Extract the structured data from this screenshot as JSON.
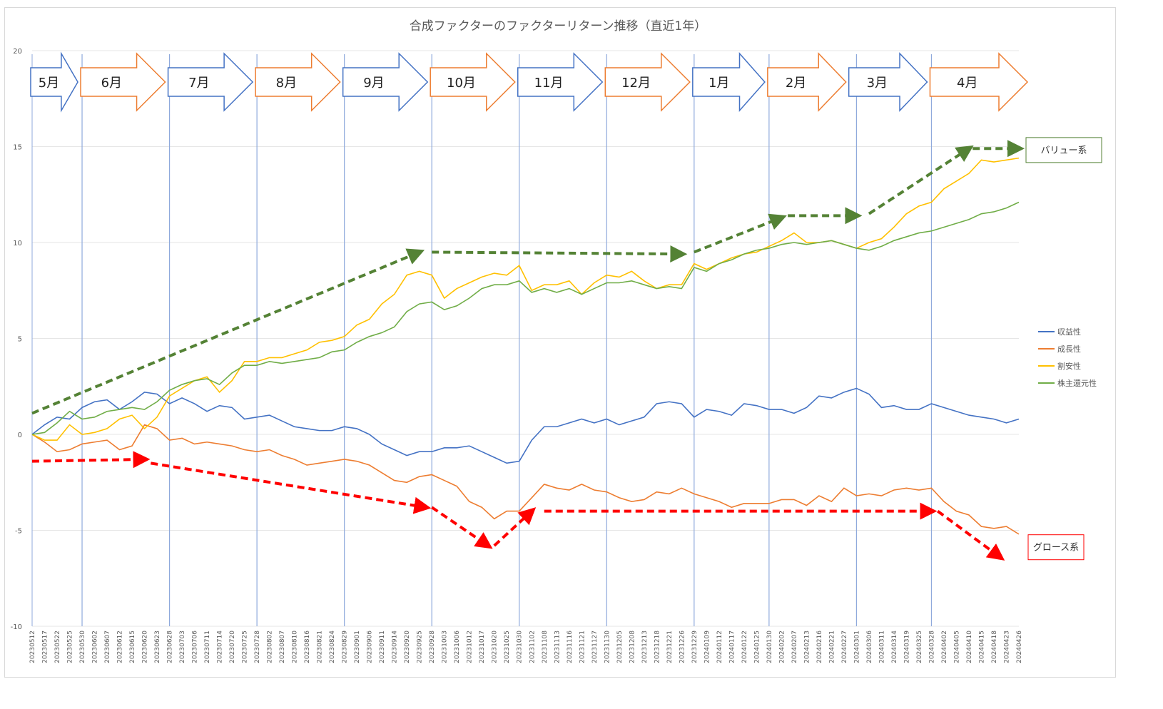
{
  "chart_data": {
    "type": "line",
    "title": "合成ファクターのファクターリターン推移（直近1年）",
    "xlabel": "",
    "ylabel": "",
    "ylim": [
      -10,
      20
    ],
    "yticks": [
      -10,
      -5,
      0,
      5,
      10,
      15,
      20
    ],
    "grid": true,
    "legend_placement": "right",
    "x": [
      "20230512",
      "20230517",
      "20230522",
      "20230525",
      "20230530",
      "20230602",
      "20230607",
      "20230612",
      "20230615",
      "20230620",
      "20230623",
      "20230628",
      "20230703",
      "20230706",
      "20230711",
      "20230714",
      "20230720",
      "20230725",
      "20230728",
      "20230802",
      "20230807",
      "20230810",
      "20230816",
      "20230821",
      "20230824",
      "20230829",
      "20230901",
      "20230906",
      "20230911",
      "20230914",
      "20230920",
      "20230925",
      "20230928",
      "20231003",
      "20231006",
      "20231012",
      "20231017",
      "20231020",
      "20231025",
      "20231030",
      "20231102",
      "20231108",
      "20231113",
      "20231116",
      "20231121",
      "20231127",
      "20231130",
      "20231205",
      "20231208",
      "20231213",
      "20231218",
      "20231221",
      "20231226",
      "20231229",
      "20240109",
      "20240112",
      "20240117",
      "20240122",
      "20240125",
      "20240130",
      "20240202",
      "20240207",
      "20240213",
      "20240216",
      "20240221",
      "20240227",
      "20240301",
      "20240306",
      "20240311",
      "20240314",
      "20240319",
      "20240325",
      "20240328",
      "20240402",
      "20240405",
      "20240410",
      "20240415",
      "20240418",
      "20240423",
      "20240426"
    ],
    "series": [
      {
        "name": "収益性",
        "color": "#4472c4",
        "values": [
          0,
          0.5,
          0.9,
          0.8,
          1.4,
          1.7,
          1.8,
          1.3,
          1.7,
          2.2,
          2.1,
          1.6,
          1.9,
          1.6,
          1.2,
          1.5,
          1.4,
          0.8,
          0.9,
          1.0,
          0.7,
          0.4,
          0.3,
          0.2,
          0.2,
          0.4,
          0.3,
          0.0,
          -0.5,
          -0.8,
          -1.1,
          -0.9,
          -0.9,
          -0.7,
          -0.7,
          -0.6,
          -0.9,
          -1.2,
          -1.5,
          -1.4,
          -0.3,
          0.4,
          0.4,
          0.6,
          0.8,
          0.6,
          0.8,
          0.5,
          0.7,
          0.9,
          1.6,
          1.7,
          1.6,
          0.9,
          1.3,
          1.2,
          1.0,
          1.6,
          1.5,
          1.3,
          1.3,
          1.1,
          1.4,
          2.0,
          1.9,
          2.2,
          2.4,
          2.1,
          1.4,
          1.5,
          1.3,
          1.3,
          1.6,
          1.4,
          1.2,
          1.0,
          0.9,
          0.8,
          0.6,
          0.8
        ]
      },
      {
        "name": "成長性",
        "color": "#ed7d31",
        "values": [
          0,
          -0.4,
          -0.9,
          -0.8,
          -0.5,
          -0.4,
          -0.3,
          -0.8,
          -0.6,
          0.5,
          0.3,
          -0.3,
          -0.2,
          -0.5,
          -0.4,
          -0.5,
          -0.6,
          -0.8,
          -0.9,
          -0.8,
          -1.1,
          -1.3,
          -1.6,
          -1.5,
          -1.4,
          -1.3,
          -1.4,
          -1.6,
          -2.0,
          -2.4,
          -2.5,
          -2.2,
          -2.1,
          -2.4,
          -2.7,
          -3.5,
          -3.8,
          -4.4,
          -4.0,
          -4.0,
          -3.3,
          -2.6,
          -2.8,
          -2.9,
          -2.6,
          -2.9,
          -3.0,
          -3.3,
          -3.5,
          -3.4,
          -3.0,
          -3.1,
          -2.8,
          -3.1,
          -3.3,
          -3.5,
          -3.8,
          -3.6,
          -3.6,
          -3.6,
          -3.4,
          -3.4,
          -3.7,
          -3.2,
          -3.5,
          -2.8,
          -3.2,
          -3.1,
          -3.2,
          -2.9,
          -2.8,
          -2.9,
          -2.8,
          -3.5,
          -4.0,
          -4.2,
          -4.8,
          -4.9,
          -4.8,
          -5.2
        ]
      },
      {
        "name": "割安性",
        "color": "#ffc000",
        "values": [
          0,
          -0.3,
          -0.3,
          0.5,
          0.0,
          0.1,
          0.3,
          0.8,
          1.0,
          0.3,
          0.9,
          2.0,
          2.4,
          2.8,
          3.0,
          2.2,
          2.8,
          3.8,
          3.8,
          4.0,
          4.0,
          4.2,
          4.4,
          4.8,
          4.9,
          5.1,
          5.7,
          6.0,
          6.8,
          7.3,
          8.3,
          8.5,
          8.3,
          7.1,
          7.6,
          7.9,
          8.2,
          8.4,
          8.3,
          8.8,
          7.5,
          7.8,
          7.8,
          8.0,
          7.3,
          7.9,
          8.3,
          8.2,
          8.5,
          8.0,
          7.6,
          7.8,
          7.8,
          8.9,
          8.6,
          8.9,
          9.2,
          9.4,
          9.5,
          9.8,
          10.1,
          10.5,
          10.0,
          10.0,
          10.1,
          9.9,
          9.7,
          10.0,
          10.2,
          10.8,
          11.5,
          11.9,
          12.1,
          12.8,
          13.2,
          13.6,
          14.3,
          14.2,
          14.3,
          14.4
        ]
      },
      {
        "name": "株主還元性",
        "color": "#70ad47",
        "values": [
          0,
          0.1,
          0.6,
          1.2,
          0.8,
          0.9,
          1.2,
          1.3,
          1.4,
          1.3,
          1.7,
          2.3,
          2.6,
          2.8,
          2.9,
          2.6,
          3.2,
          3.6,
          3.6,
          3.8,
          3.7,
          3.8,
          3.9,
          4.0,
          4.3,
          4.4,
          4.8,
          5.1,
          5.3,
          5.6,
          6.4,
          6.8,
          6.9,
          6.5,
          6.7,
          7.1,
          7.6,
          7.8,
          7.8,
          8.0,
          7.4,
          7.6,
          7.4,
          7.6,
          7.3,
          7.6,
          7.9,
          7.9,
          8.0,
          7.8,
          7.6,
          7.7,
          7.6,
          8.7,
          8.5,
          8.9,
          9.1,
          9.4,
          9.6,
          9.7,
          9.9,
          10.0,
          9.9,
          10.0,
          10.1,
          9.9,
          9.7,
          9.6,
          9.8,
          10.1,
          10.3,
          10.5,
          10.6,
          10.8,
          11.0,
          11.2,
          11.5,
          11.6,
          11.8,
          12.1
        ]
      }
    ],
    "month_dividers": [
      "20230530",
      "20230628",
      "20230728",
      "20230829",
      "20230928",
      "20231030",
      "20231130",
      "20231229",
      "20240130",
      "20240301",
      "20240328"
    ],
    "month_arrows": [
      {
        "label": "5月",
        "from": 0,
        "to": 4,
        "color": "#4472c4"
      },
      {
        "label": "6月",
        "from": 4,
        "to": 11,
        "color": "#ed7d31"
      },
      {
        "label": "7月",
        "from": 11,
        "to": 18,
        "color": "#4472c4"
      },
      {
        "label": "8月",
        "from": 18,
        "to": 25,
        "color": "#ed7d31"
      },
      {
        "label": "9月",
        "from": 25,
        "to": 32,
        "color": "#4472c4"
      },
      {
        "label": "10月",
        "from": 32,
        "to": 39,
        "color": "#ed7d31"
      },
      {
        "label": "11月",
        "from": 39,
        "to": 46,
        "color": "#4472c4"
      },
      {
        "label": "12月",
        "from": 46,
        "to": 53,
        "color": "#ed7d31"
      },
      {
        "label": "1月",
        "from": 53,
        "to": 59,
        "color": "#4472c4"
      },
      {
        "label": "2月",
        "from": 59,
        "to": 65.5,
        "color": "#ed7d31"
      },
      {
        "label": "3月",
        "from": 65.5,
        "to": 72,
        "color": "#4472c4"
      },
      {
        "label": "4月",
        "from": 72,
        "to": 79,
        "color": "#ed7d31"
      }
    ],
    "trend_annotations": [
      {
        "group": "バリュー系",
        "color": "#548235",
        "border": "#548235",
        "label_y": 14.8,
        "segments": [
          [
            0,
            1.1,
            31,
            9.5
          ],
          [
            32,
            9.5,
            52,
            9.4
          ],
          [
            53,
            9.5,
            60,
            11.3
          ],
          [
            60.5,
            11.4,
            66,
            11.4
          ],
          [
            67,
            11.5,
            75,
            14.9
          ],
          [
            75.3,
            14.9,
            79,
            14.9
          ]
        ]
      },
      {
        "group": "グロース系",
        "color": "#ff0000",
        "border": "#ff0000",
        "label_y": -5.9,
        "segments": [
          [
            0,
            -1.4,
            9,
            -1.3
          ],
          [
            9.5,
            -1.5,
            31.5,
            -3.8
          ],
          [
            32,
            -3.8,
            36.5,
            -5.8
          ],
          [
            37,
            -5.8,
            40,
            -4.0
          ],
          [
            41,
            -4.0,
            72,
            -4.0
          ],
          [
            72.5,
            -4.0,
            77.5,
            -6.4
          ]
        ]
      }
    ]
  }
}
